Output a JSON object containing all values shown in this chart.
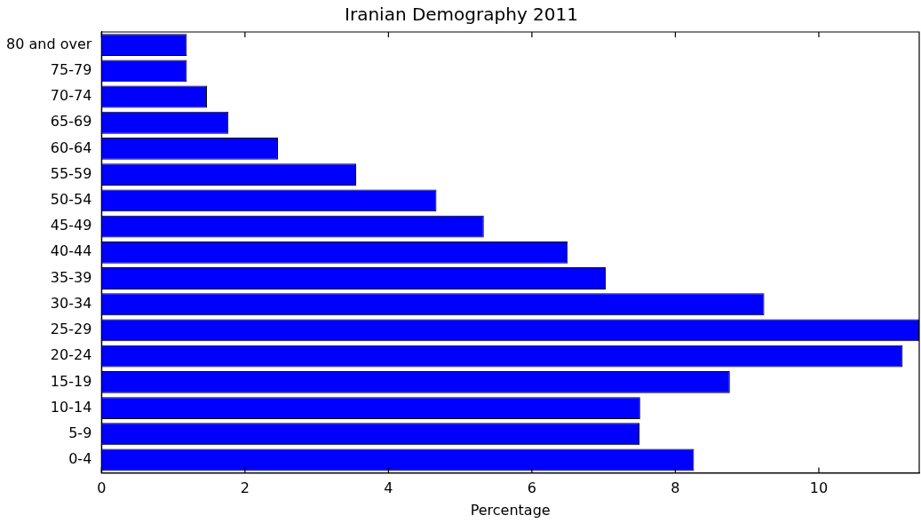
{
  "chart_data": {
    "type": "bar",
    "orientation": "horizontal",
    "title": "Iranian Demography 2011",
    "xlabel": "Percentage",
    "categories": [
      "80 and over",
      "75-79",
      "70-74",
      "65-69",
      "60-64",
      "55-59",
      "50-54",
      "45-49",
      "40-44",
      "35-39",
      "30-34",
      "25-29",
      "20-24",
      "15-19",
      "10-14",
      "5-9",
      "0-4"
    ],
    "values": [
      1.19,
      1.19,
      1.47,
      1.77,
      2.46,
      3.55,
      4.67,
      5.33,
      6.5,
      7.03,
      9.24,
      11.4,
      11.17,
      8.76,
      7.51,
      7.5,
      8.26
    ],
    "color": "#0000ff",
    "xlim": [
      0,
      11.4
    ],
    "xticks": [
      0,
      2,
      4,
      6,
      8,
      10
    ],
    "grid": false,
    "legend": false
  }
}
